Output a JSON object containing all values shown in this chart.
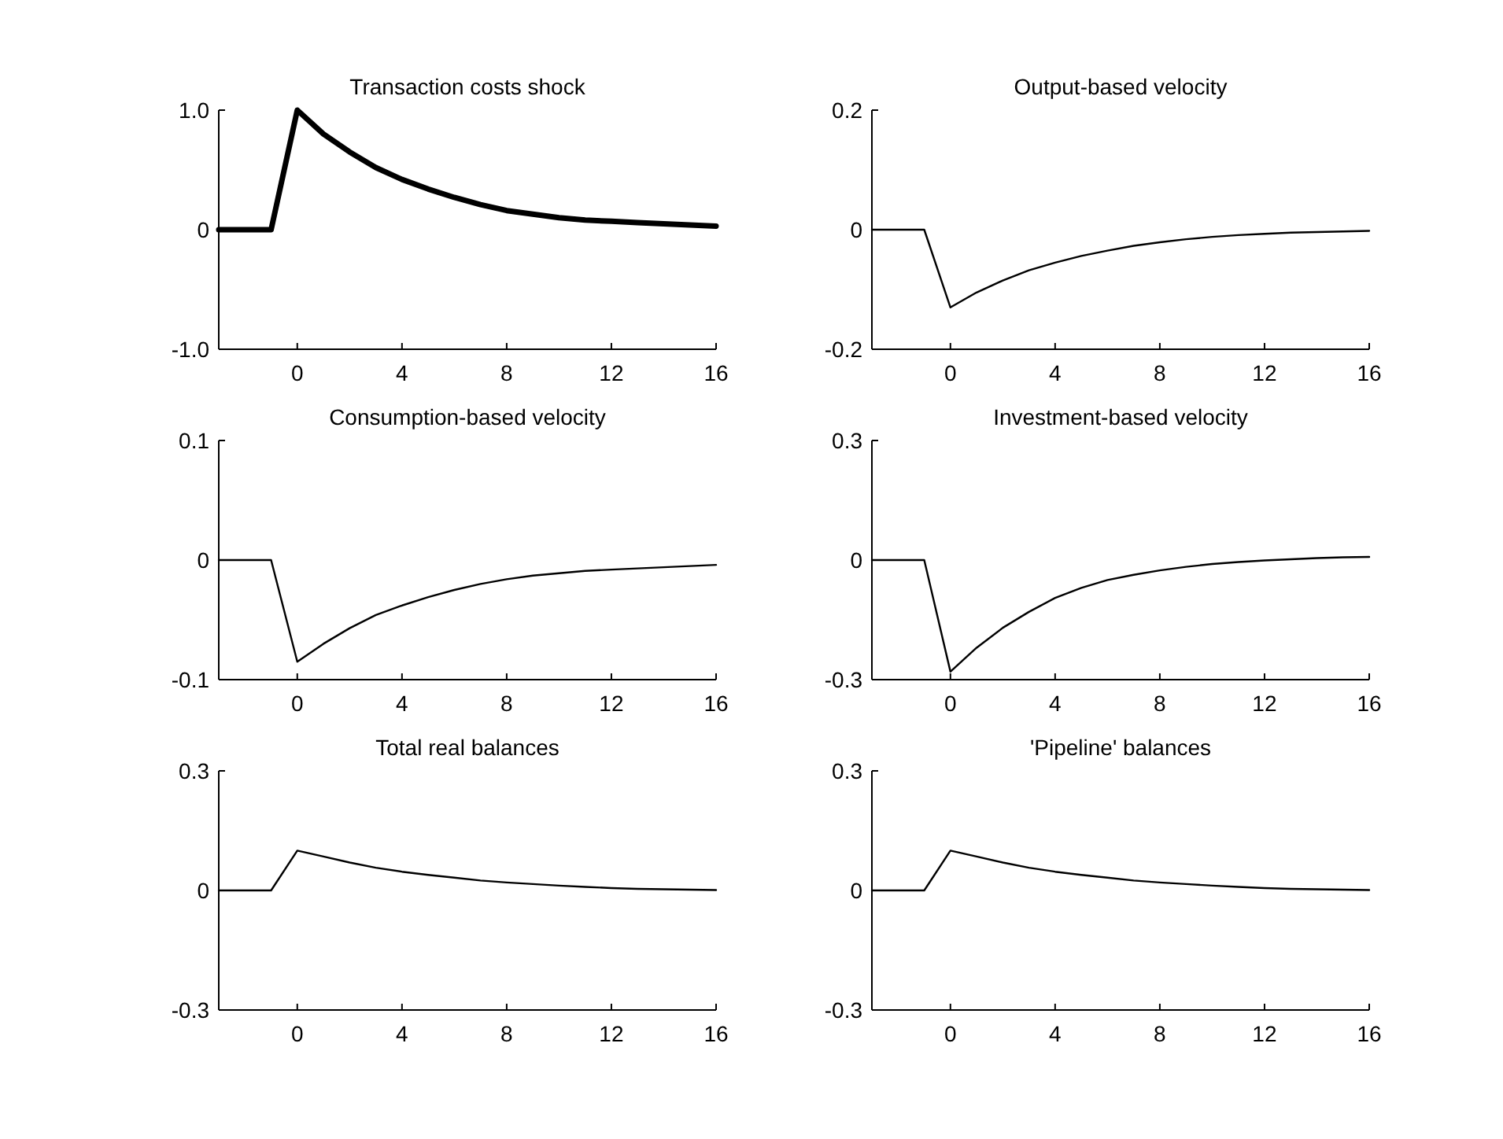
{
  "chart_data": [
    {
      "type": "line",
      "title": "Transaction costs shock",
      "x": [
        -3,
        -2,
        -1,
        0,
        1,
        2,
        3,
        4,
        5,
        6,
        7,
        8,
        9,
        10,
        11,
        12,
        13,
        14,
        15,
        16
      ],
      "xlim": [
        -3,
        16
      ],
      "xticks": [
        0,
        4,
        8,
        12,
        16
      ],
      "ylim": [
        -1,
        1
      ],
      "yticks": [
        {
          "value": -1,
          "label": "-1.0"
        },
        0,
        {
          "value": 1,
          "label": "1.0"
        }
      ],
      "series": [
        {
          "color": "#000000",
          "values": [
            0,
            0,
            0,
            1.0,
            0.8,
            0.65,
            0.52,
            0.42,
            0.34,
            0.27,
            0.21,
            0.16,
            0.13,
            0.1,
            0.08,
            0.07,
            0.06,
            0.05,
            0.04,
            0.03
          ]
        }
      ]
    },
    {
      "type": "line",
      "title": "Output-based velocity",
      "x": [
        -3,
        -2,
        -1,
        0,
        1,
        2,
        3,
        4,
        5,
        6,
        7,
        8,
        9,
        10,
        11,
        12,
        13,
        14,
        15,
        16
      ],
      "xlim": [
        -3,
        16
      ],
      "xticks": [
        0,
        4,
        8,
        12,
        16
      ],
      "ylim": [
        -0.2,
        0.2
      ],
      "yticks": [
        -0.2,
        0,
        0.2
      ],
      "series": [
        {
          "color": "#000000",
          "values": [
            0,
            0,
            0,
            -0.13,
            -0.105,
            -0.085,
            -0.068,
            -0.055,
            -0.044,
            -0.035,
            -0.027,
            -0.021,
            -0.016,
            -0.012,
            -0.009,
            -0.007,
            -0.005,
            -0.004,
            -0.003,
            -0.002
          ]
        }
      ]
    },
    {
      "type": "line",
      "title": "Consumption-based velocity",
      "x": [
        -3,
        -2,
        -1,
        0,
        1,
        2,
        3,
        4,
        5,
        6,
        7,
        8,
        9,
        10,
        11,
        12,
        13,
        14,
        15,
        16
      ],
      "xlim": [
        -3,
        16
      ],
      "xticks": [
        0,
        4,
        8,
        12,
        16
      ],
      "ylim": [
        -0.1,
        0.1
      ],
      "yticks": [
        -0.1,
        0,
        0.1
      ],
      "series": [
        {
          "color": "#000000",
          "values": [
            0,
            0,
            0,
            -0.085,
            -0.07,
            -0.057,
            -0.046,
            -0.038,
            -0.031,
            -0.025,
            -0.02,
            -0.016,
            -0.013,
            -0.011,
            -0.009,
            -0.008,
            -0.007,
            -0.006,
            -0.005,
            -0.004
          ]
        }
      ]
    },
    {
      "type": "line",
      "title": "Investment-based velocity",
      "x": [
        -3,
        -2,
        -1,
        0,
        1,
        2,
        3,
        4,
        5,
        6,
        7,
        8,
        9,
        10,
        11,
        12,
        13,
        14,
        15,
        16
      ],
      "xlim": [
        -3,
        16
      ],
      "xticks": [
        0,
        4,
        8,
        12,
        16
      ],
      "ylim": [
        -0.3,
        0.3
      ],
      "yticks": [
        -0.3,
        0,
        0.3
      ],
      "series": [
        {
          "color": "#000000",
          "values": [
            0,
            0,
            0,
            -0.28,
            -0.22,
            -0.17,
            -0.13,
            -0.095,
            -0.07,
            -0.05,
            -0.037,
            -0.026,
            -0.017,
            -0.01,
            -0.005,
            -0.001,
            0.002,
            0.005,
            0.007,
            0.008
          ]
        }
      ]
    },
    {
      "type": "line",
      "title": "Total real balances",
      "x": [
        -3,
        -2,
        -1,
        0,
        1,
        2,
        3,
        4,
        5,
        6,
        7,
        8,
        9,
        10,
        11,
        12,
        13,
        14,
        15,
        16
      ],
      "xlim": [
        -3,
        16
      ],
      "xticks": [
        0,
        4,
        8,
        12,
        16
      ],
      "ylim": [
        -0.3,
        0.3
      ],
      "yticks": [
        -0.3,
        0,
        0.3
      ],
      "series": [
        {
          "color": "#000000",
          "values": [
            0,
            0,
            0,
            0.1,
            0.085,
            0.07,
            0.057,
            0.047,
            0.039,
            0.032,
            0.025,
            0.02,
            0.016,
            0.012,
            0.009,
            0.006,
            0.004,
            0.003,
            0.002,
            0.001
          ]
        }
      ]
    },
    {
      "type": "line",
      "title": "'Pipeline' balances",
      "x": [
        -3,
        -2,
        -1,
        0,
        1,
        2,
        3,
        4,
        5,
        6,
        7,
        8,
        9,
        10,
        11,
        12,
        13,
        14,
        15,
        16
      ],
      "xlim": [
        -3,
        16
      ],
      "xticks": [
        0,
        4,
        8,
        12,
        16
      ],
      "ylim": [
        -0.3,
        0.3
      ],
      "yticks": [
        -0.3,
        0,
        0.3
      ],
      "series": [
        {
          "color": "#000000",
          "values": [
            0,
            0,
            0,
            0.1,
            0.085,
            0.07,
            0.057,
            0.047,
            0.039,
            0.032,
            0.025,
            0.02,
            0.016,
            0.012,
            0.009,
            0.006,
            0.004,
            0.003,
            0.002,
            0.001
          ]
        }
      ]
    }
  ]
}
